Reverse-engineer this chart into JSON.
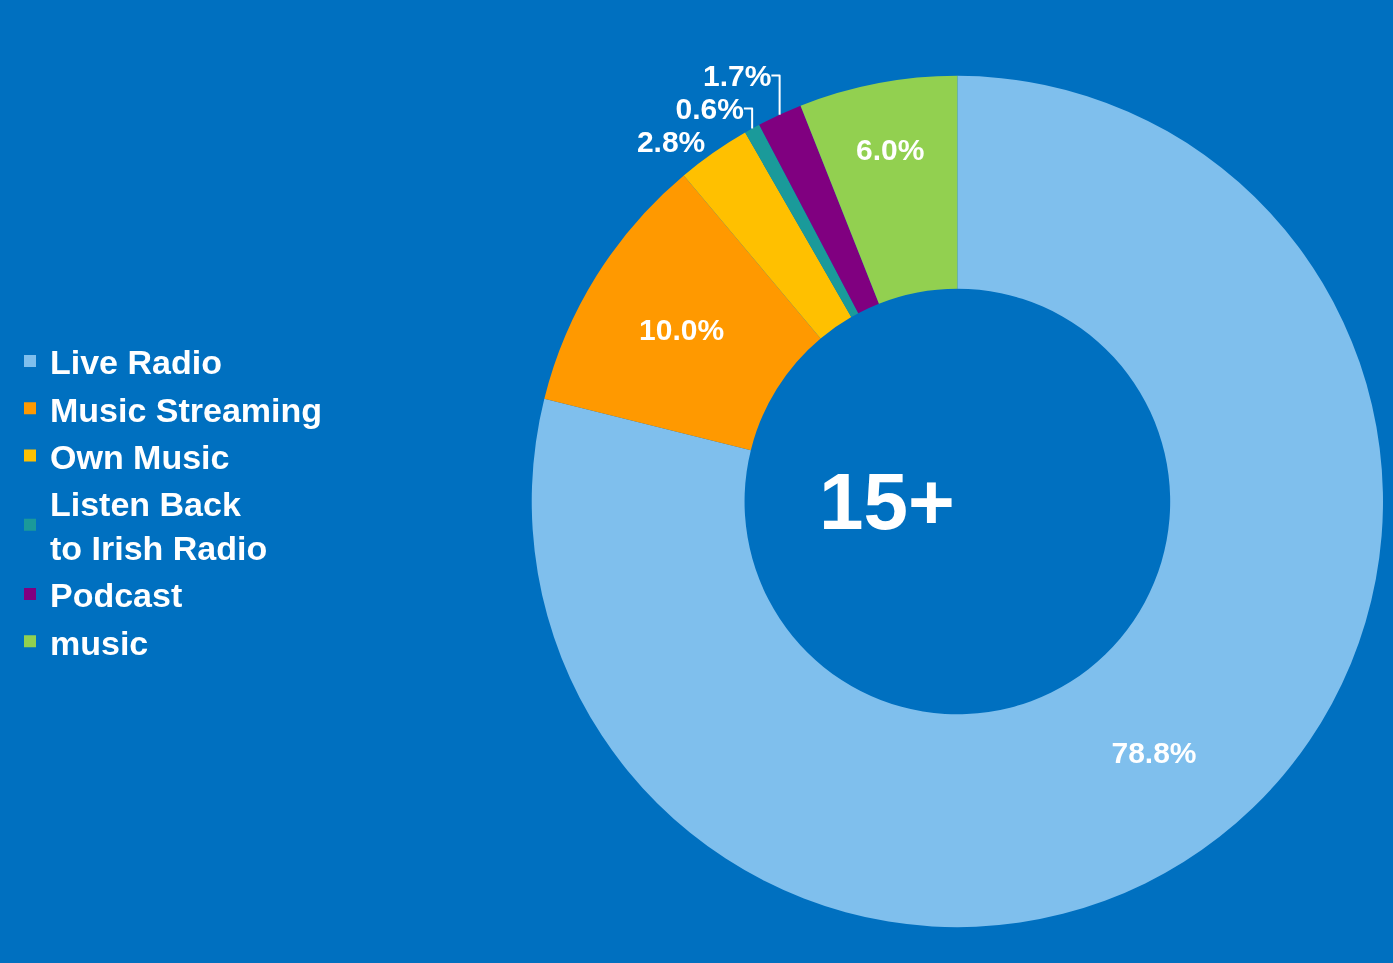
{
  "chart_data": {
    "type": "donut",
    "categories": [
      "Live Radio",
      "Music Streaming",
      "Own Music",
      "Listen Back\nto Irish Radio",
      "Podcast",
      "music"
    ],
    "values": [
      78.8,
      10.0,
      2.8,
      0.6,
      1.7,
      6.0
    ],
    "colors": [
      "#7fbfed",
      "#ff9900",
      "#ffc000",
      "#1a9a9a",
      "#800080",
      "#92d050"
    ],
    "value_labels": [
      "78.8%",
      "10.0%",
      "2.8%",
      "0.6%",
      "1.7%",
      "6.0%"
    ],
    "legend": "left",
    "annotations": [
      "15+"
    ]
  }
}
